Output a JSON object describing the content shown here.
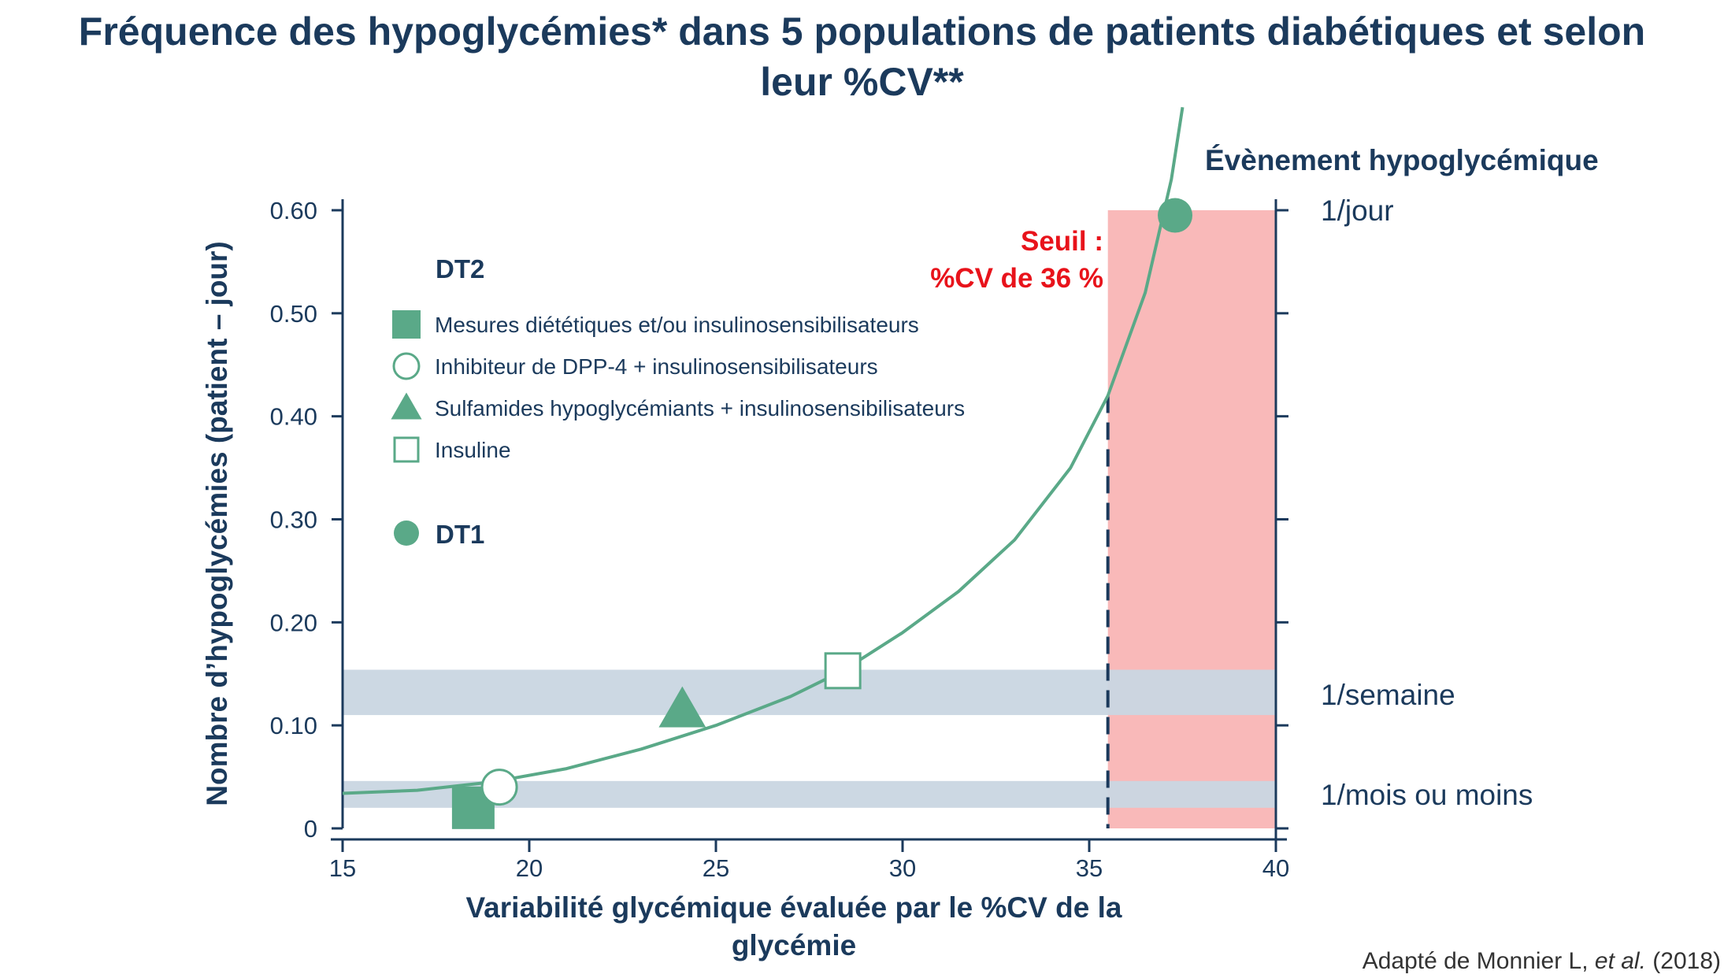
{
  "title_line1": "Fréquence des hypoglycémies* dans 5 populations de patients diabétiques et selon",
  "title_line2": "leur %CV**",
  "source_prefix": "Adapté de Monnier L, ",
  "source_italic": "et al.",
  "source_suffix": " (2018)",
  "colors": {
    "accent": "#5aa988",
    "threshold_zone": "#f9b9b9",
    "band": "#c9d6e1",
    "text": "#1b3a5c",
    "threshold_text": "#e8131b"
  },
  "chart_data": {
    "type": "scatter",
    "xlabel_line1": "Variabilité glycémique évaluée par le %CV de la",
    "xlabel_line2": "glycémie",
    "ylabel": "Nombre d’hypoglycémies (patient – jour)",
    "right_axis_title": "Évènement hypoglycémique",
    "xlim": [
      15,
      40
    ],
    "ylim": [
      0,
      0.6
    ],
    "x_ticks": [
      "15",
      "20",
      "25",
      "30",
      "35",
      "40"
    ],
    "y_ticks": [
      "0",
      "0.10",
      "0.20",
      "0.30",
      "0.40",
      "0.50",
      "0.60"
    ],
    "right_labels": [
      {
        "label": "1/jour",
        "y": 0.6
      },
      {
        "label": "1/semaine",
        "y": 0.13
      },
      {
        "label": "1/mois ou moins",
        "y": 0.033
      }
    ],
    "bands": [
      {
        "y0": 0.02,
        "y1": 0.046
      },
      {
        "y0": 0.11,
        "y1": 0.154
      }
    ],
    "threshold": {
      "x": 35.5,
      "label_line1": "Seuil :",
      "label_line2": "%CV de 36 %"
    },
    "legend_dt2_title": "DT2",
    "legend_dt1_title": "DT1",
    "series": [
      {
        "name": "Mesures diététiques et/ou insulinosensibilisateurs",
        "group": "DT2",
        "marker": "square-filled",
        "x": 18.5,
        "y": 0.02
      },
      {
        "name": "Inhibiteur de DPP-4 + insulinosensibilisateurs",
        "group": "DT2",
        "marker": "circle-open",
        "x": 19.2,
        "y": 0.04
      },
      {
        "name": "Sulfamides hypoglycémiants + insulinosensibilisateurs",
        "group": "DT2",
        "marker": "triangle-filled",
        "x": 24.1,
        "y": 0.115
      },
      {
        "name": "Insuline",
        "group": "DT2",
        "marker": "square-open",
        "x": 28.4,
        "y": 0.153
      },
      {
        "name": "DT1",
        "group": "DT1",
        "marker": "circle-filled",
        "x": 37.3,
        "y": 0.595
      }
    ],
    "curve": [
      [
        15.0,
        0.034
      ],
      [
        17.0,
        0.037
      ],
      [
        19.0,
        0.045
      ],
      [
        21.0,
        0.058
      ],
      [
        23.0,
        0.077
      ],
      [
        25.0,
        0.1
      ],
      [
        27.0,
        0.128
      ],
      [
        28.4,
        0.153
      ],
      [
        30.0,
        0.19
      ],
      [
        31.5,
        0.23
      ],
      [
        33.0,
        0.28
      ],
      [
        34.5,
        0.35
      ],
      [
        35.5,
        0.42
      ],
      [
        36.5,
        0.52
      ],
      [
        37.2,
        0.63
      ],
      [
        37.5,
        0.7
      ]
    ]
  }
}
